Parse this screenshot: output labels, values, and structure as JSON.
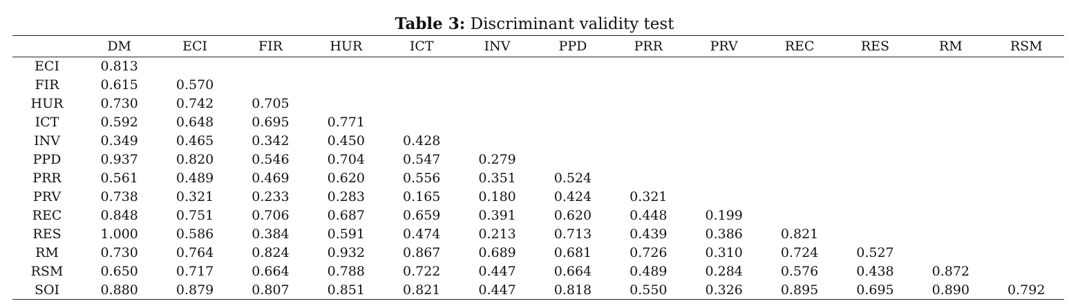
{
  "caption": {
    "label": "Table 3:",
    "text": "Discriminant validity test"
  },
  "columns": [
    "DM",
    "ECI",
    "FIR",
    "HUR",
    "ICT",
    "INV",
    "PPD",
    "PRR",
    "PRV",
    "REC",
    "RES",
    "RM",
    "RSM"
  ],
  "rows": [
    {
      "label": "ECI",
      "values": [
        "0.813"
      ]
    },
    {
      "label": "FIR",
      "values": [
        "0.615",
        "0.570"
      ]
    },
    {
      "label": "HUR",
      "values": [
        "0.730",
        "0.742",
        "0.705"
      ]
    },
    {
      "label": "ICT",
      "values": [
        "0.592",
        "0.648",
        "0.695",
        "0.771"
      ]
    },
    {
      "label": "INV",
      "values": [
        "0.349",
        "0.465",
        "0.342",
        "0.450",
        "0.428"
      ]
    },
    {
      "label": "PPD",
      "values": [
        "0.937",
        "0.820",
        "0.546",
        "0.704",
        "0.547",
        "0.279"
      ]
    },
    {
      "label": "PRR",
      "values": [
        "0.561",
        "0.489",
        "0.469",
        "0.620",
        "0.556",
        "0.351",
        "0.524"
      ]
    },
    {
      "label": "PRV",
      "values": [
        "0.738",
        "0.321",
        "0.233",
        "0.283",
        "0.165",
        "0.180",
        "0.424",
        "0.321"
      ]
    },
    {
      "label": "REC",
      "values": [
        "0.848",
        "0.751",
        "0.706",
        "0.687",
        "0.659",
        "0.391",
        "0.620",
        "0.448",
        "0.199"
      ]
    },
    {
      "label": "RES",
      "values": [
        "1.000",
        "0.586",
        "0.384",
        "0.591",
        "0.474",
        "0.213",
        "0.713",
        "0.439",
        "0.386",
        "0.821"
      ]
    },
    {
      "label": "RM",
      "values": [
        "0.730",
        "0.764",
        "0.824",
        "0.932",
        "0.867",
        "0.689",
        "0.681",
        "0.726",
        "0.310",
        "0.724",
        "0.527"
      ]
    },
    {
      "label": "RSM",
      "values": [
        "0.650",
        "0.717",
        "0.664",
        "0.788",
        "0.722",
        "0.447",
        "0.664",
        "0.489",
        "0.284",
        "0.576",
        "0.438",
        "0.872"
      ]
    },
    {
      "label": "SOI",
      "values": [
        "0.880",
        "0.879",
        "0.807",
        "0.851",
        "0.821",
        "0.447",
        "0.818",
        "0.550",
        "0.326",
        "0.895",
        "0.695",
        "0.890",
        "0.792"
      ]
    }
  ]
}
